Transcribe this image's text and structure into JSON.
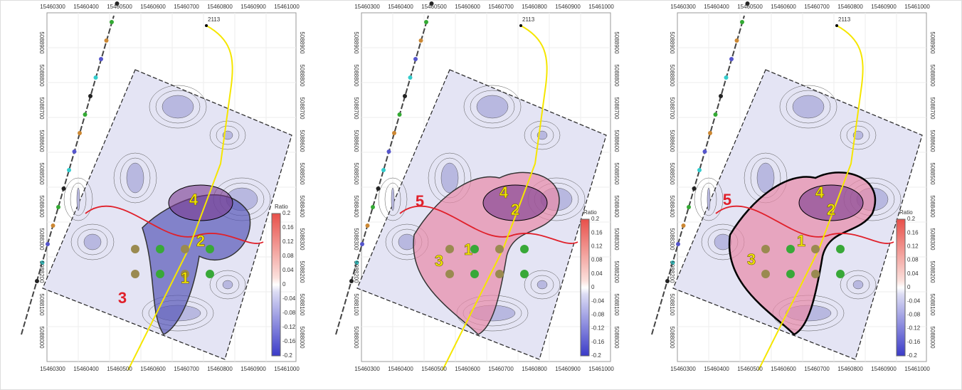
{
  "panels": [
    {
      "x_ticks_top": [
        "15460300",
        "15460400",
        "15460500",
        "15460600",
        "15460700",
        "15460800",
        "15460900",
        "15461000"
      ],
      "x_ticks_bottom": [
        "15460300",
        "15460400",
        "15460500",
        "15460600",
        "15460700",
        "15460800",
        "15460900",
        "15461000"
      ],
      "y_ticks": [
        "5088900",
        "5088800",
        "5088700",
        "5088600",
        "5088500",
        "5088400",
        "5088300",
        "5088200",
        "5088100",
        "5088000"
      ],
      "colorbar": {
        "title": "Ratio",
        "ticks": [
          "0.2",
          "0.16",
          "0.12",
          "0.08",
          "0.04",
          "0",
          "-0.04",
          "-0.08",
          "-0.12",
          "-0.16",
          "-0.2"
        ]
      },
      "well": "2113",
      "zones": [
        "1",
        "2",
        "3",
        "4"
      ]
    },
    {
      "x_ticks_top": [
        "15460300",
        "15460400",
        "15460500",
        "15460600",
        "15460700",
        "15460800",
        "15460900",
        "15461000"
      ],
      "x_ticks_bottom": [
        "15460300",
        "15460400",
        "15460500",
        "15460600",
        "15460700",
        "15460800",
        "15460900",
        "15461000"
      ],
      "y_ticks": [
        "5088900",
        "5088800",
        "5088700",
        "5088600",
        "5088500",
        "5088400",
        "5088300",
        "5088200",
        "5088100",
        "5088000"
      ],
      "colorbar": {
        "title": "Ratio",
        "ticks": [
          "0.2",
          "0.16",
          "0.12",
          "0.08",
          "0.04",
          "0",
          "-0.04",
          "-0.08",
          "-0.12",
          "-0.16",
          "-0.2"
        ]
      },
      "well": "2113",
      "zones": [
        "1",
        "2",
        "3",
        "4",
        "5"
      ]
    },
    {
      "x_ticks_top": [
        "15460300",
        "15460400",
        "15460500",
        "15460600",
        "15460700",
        "15460800",
        "15460900",
        "15461000"
      ],
      "x_ticks_bottom": [
        "15460300",
        "15460400",
        "15460500",
        "15460600",
        "15460700",
        "15460800",
        "15460900",
        "15461000"
      ],
      "y_ticks": [
        "5088900",
        "5088800",
        "5088700",
        "5088600",
        "5088500",
        "5088400",
        "5088300",
        "5088200",
        "5088100",
        "5088000"
      ],
      "colorbar": {
        "title": "Ratio",
        "ticks": [
          "0.2",
          "0.16",
          "0.12",
          "0.08",
          "0.04",
          "0",
          "-0.04",
          "-0.08",
          "-0.12",
          "-0.16",
          "-0.2"
        ]
      },
      "well": "2113",
      "zones": [
        "1",
        "2",
        "3",
        "4",
        "5"
      ]
    }
  ]
}
